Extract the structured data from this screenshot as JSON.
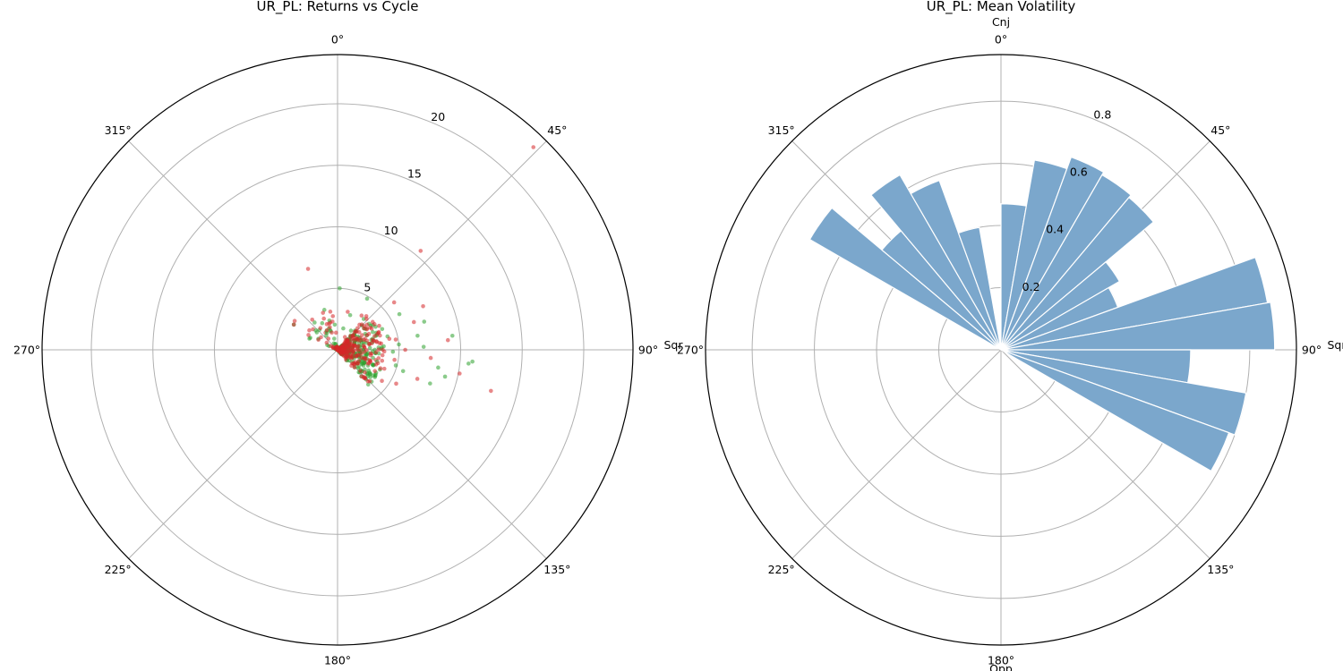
{
  "chart_data": [
    {
      "type": "scatter",
      "projection": "polar",
      "title": "UR_PL: Returns vs Cycle",
      "theta_direction": "clockwise",
      "theta_zero": "top",
      "theta_tick_labels": [
        "0°",
        "45°",
        "90°",
        "135°",
        "180°",
        "225°",
        "270°",
        "315°"
      ],
      "theta_annotations": [
        {
          "angle_deg": 90,
          "label": "Sqr"
        }
      ],
      "r_ticks": [
        5,
        10,
        15,
        20
      ],
      "r_tick_labels": [
        "5",
        "10",
        "15",
        "20"
      ],
      "rlim": [
        0,
        24
      ],
      "grid": true,
      "series": [
        {
          "name": "positive",
          "color": "#2ca02c",
          "points": [
            {
              "theta": 96,
              "r": 10.7
            },
            {
              "theta": 95,
              "r": 11.0
            },
            {
              "theta": 104,
              "r": 9.0
            },
            {
              "theta": 88,
              "r": 7.0
            },
            {
              "theta": 80,
              "r": 6.6
            },
            {
              "theta": 100,
              "r": 8.3
            },
            {
              "theta": 110,
              "r": 8.0
            },
            {
              "theta": 60,
              "r": 5.8
            },
            {
              "theta": 30,
              "r": 4.8
            },
            {
              "theta": 2,
              "r": 5.0
            },
            {
              "theta": 300,
              "r": 4.1
            },
            {
              "theta": 330,
              "r": 2.5
            },
            {
              "theta": 85,
              "r": 5.0
            },
            {
              "theta": 75,
              "r": 4.2
            },
            {
              "theta": 92,
              "r": 4.5
            },
            {
              "theta": 105,
              "r": 4.9
            },
            {
              "theta": 115,
              "r": 3.8
            },
            {
              "theta": 70,
              "r": 3.3
            },
            {
              "theta": 95,
              "r": 3.1
            },
            {
              "theta": 60,
              "r": 2.6
            },
            {
              "theta": 45,
              "r": 2.8
            },
            {
              "theta": 20,
              "r": 3.0
            },
            {
              "theta": 340,
              "r": 1.6
            },
            {
              "theta": 300,
              "r": 1.8
            },
            {
              "theta": 80,
              "r": 2.1
            },
            {
              "theta": 110,
              "r": 2.2
            },
            {
              "theta": 100,
              "r": 1.3
            },
            {
              "theta": 70,
              "r": 1.5
            },
            {
              "theta": 50,
              "r": 1.2
            },
            {
              "theta": 120,
              "r": 1.0
            },
            {
              "theta": 15,
              "r": 1.8
            },
            {
              "theta": 35,
              "r": 1.9
            },
            {
              "theta": 87,
              "r": 3.6
            },
            {
              "theta": 78,
              "r": 2.9
            },
            {
              "theta": 98,
              "r": 2.4
            },
            {
              "theta": 65,
              "r": 4.0
            },
            {
              "theta": 55,
              "r": 3.5
            },
            {
              "theta": 320,
              "r": 2.9
            },
            {
              "theta": 310,
              "r": 2.2
            },
            {
              "theta": 108,
              "r": 5.6
            },
            {
              "theta": 72,
              "r": 7.4
            },
            {
              "theta": 83,
              "r": 9.4
            }
          ]
        },
        {
          "name": "negative",
          "color": "#d62728",
          "points": [
            {
              "theta": 44,
              "r": 22.9
            },
            {
              "theta": 40,
              "r": 10.5
            },
            {
              "theta": 340,
              "r": 7.0
            },
            {
              "theta": 300,
              "r": 4.1
            },
            {
              "theta": 304,
              "r": 4.2
            },
            {
              "theta": 101,
              "r": 10.1
            },
            {
              "theta": 105,
              "r": 12.9
            },
            {
              "theta": 85,
              "r": 9.0
            },
            {
              "theta": 63,
              "r": 7.8
            },
            {
              "theta": 50,
              "r": 6.0
            },
            {
              "theta": 70,
              "r": 6.6
            },
            {
              "theta": 95,
              "r": 7.6
            },
            {
              "theta": 110,
              "r": 6.9
            },
            {
              "theta": 120,
              "r": 5.5
            },
            {
              "theta": 125,
              "r": 4.4
            },
            {
              "theta": 90,
              "r": 5.5
            },
            {
              "theta": 80,
              "r": 4.8
            },
            {
              "theta": 100,
              "r": 4.7
            },
            {
              "theta": 60,
              "r": 3.9
            },
            {
              "theta": 35,
              "r": 3.4
            },
            {
              "theta": 15,
              "r": 3.2
            },
            {
              "theta": 345,
              "r": 2.3
            },
            {
              "theta": 320,
              "r": 3.2
            },
            {
              "theta": 310,
              "r": 2.6
            },
            {
              "theta": 75,
              "r": 3.0
            },
            {
              "theta": 105,
              "r": 3.2
            },
            {
              "theta": 115,
              "r": 2.5
            },
            {
              "theta": 85,
              "r": 2.2
            },
            {
              "theta": 65,
              "r": 1.8
            },
            {
              "theta": 45,
              "r": 1.5
            },
            {
              "theta": 30,
              "r": 1.2
            },
            {
              "theta": 130,
              "r": 1.7
            },
            {
              "theta": 140,
              "r": 1.1
            },
            {
              "theta": 355,
              "r": 1.4
            },
            {
              "theta": 325,
              "r": 1.7
            },
            {
              "theta": 92,
              "r": 3.8
            },
            {
              "theta": 78,
              "r": 4.3
            },
            {
              "theta": 96,
              "r": 2.8
            },
            {
              "theta": 112,
              "r": 4.1
            },
            {
              "theta": 68,
              "r": 2.4
            },
            {
              "theta": 55,
              "r": 2.9
            },
            {
              "theta": 88,
              "r": 1.6
            }
          ]
        }
      ]
    },
    {
      "type": "bar",
      "projection": "polar",
      "title": "UR_PL: Mean Volatility",
      "theta_direction": "clockwise",
      "theta_zero": "top",
      "theta_tick_labels": [
        "0°",
        "45°",
        "90°",
        "135°",
        "180°",
        "225°",
        "270°",
        "315°"
      ],
      "theta_annotations": [
        {
          "angle_deg": 0,
          "label": "Cnj"
        },
        {
          "angle_deg": 90,
          "label": "Sqr"
        },
        {
          "angle_deg": 180,
          "label": "Opp"
        }
      ],
      "r_ticks": [
        0.2,
        0.4,
        0.6,
        0.8
      ],
      "r_tick_labels": [
        "0.2",
        "0.4",
        "0.6",
        "0.8"
      ],
      "rlim": [
        0,
        0.95
      ],
      "grid": true,
      "bar_color": "#7ba7cc",
      "bin_width_deg": 10,
      "bins": [
        {
          "start": 0,
          "value": 0.47
        },
        {
          "start": 10,
          "value": 0.62
        },
        {
          "start": 20,
          "value": 0.66
        },
        {
          "start": 30,
          "value": 0.65
        },
        {
          "start": 40,
          "value": 0.64
        },
        {
          "start": 50,
          "value": 0.44
        },
        {
          "start": 60,
          "value": 0.4
        },
        {
          "start": 70,
          "value": 0.87
        },
        {
          "start": 80,
          "value": 0.88
        },
        {
          "start": 90,
          "value": 0.61
        },
        {
          "start": 100,
          "value": 0.8
        },
        {
          "start": 110,
          "value": 0.78
        },
        {
          "start": 300,
          "value": 0.71
        },
        {
          "start": 310,
          "value": 0.5
        },
        {
          "start": 320,
          "value": 0.65
        },
        {
          "start": 330,
          "value": 0.58
        },
        {
          "start": 340,
          "value": 0.4
        }
      ]
    }
  ]
}
